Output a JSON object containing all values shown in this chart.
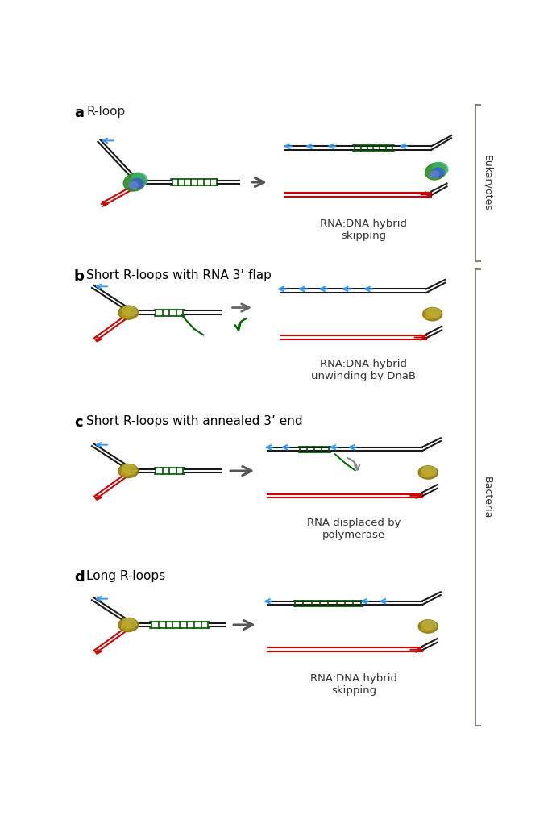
{
  "fig_width": 6.85,
  "fig_height": 10.17,
  "bg_color": "#ffffff",
  "panel_labels": [
    "a",
    "b",
    "c",
    "d"
  ],
  "panel_titles": [
    "R-loop",
    "Short R-loops with RNA 3’ flap",
    "Short R-loops with annealed 3’ end",
    "Long R-loops"
  ],
  "panel_label_fontsize": 13,
  "panel_title_fontsize": 11,
  "result_labels": [
    "RNA:DNA hybrid\nskipping",
    "RNA:DNA hybrid\nunwinding by DnaB",
    "RNA displaced by\npolymerase",
    "RNA:DNA hybrid\nskipping"
  ],
  "side_line_color": "#8B7D6B",
  "dna_color": "#1a1a1a",
  "rna_color": "#CC0000",
  "hybrid_color": "#005500",
  "blue_arrow_color": "#3399FF",
  "arrow_color": "#555555",
  "green_flap_color": "#006600",
  "label_fontsize": 9.5,
  "side_fontsize": 9,
  "euk_green1": "#2E8B22",
  "euk_green2": "#3CB371",
  "euk_blue1": "#3A5FCD",
  "euk_blue2": "#6080D0",
  "bact_color1": "#8B7500",
  "bact_color2": "#BDB440",
  "bact_color3": "#C8A820"
}
